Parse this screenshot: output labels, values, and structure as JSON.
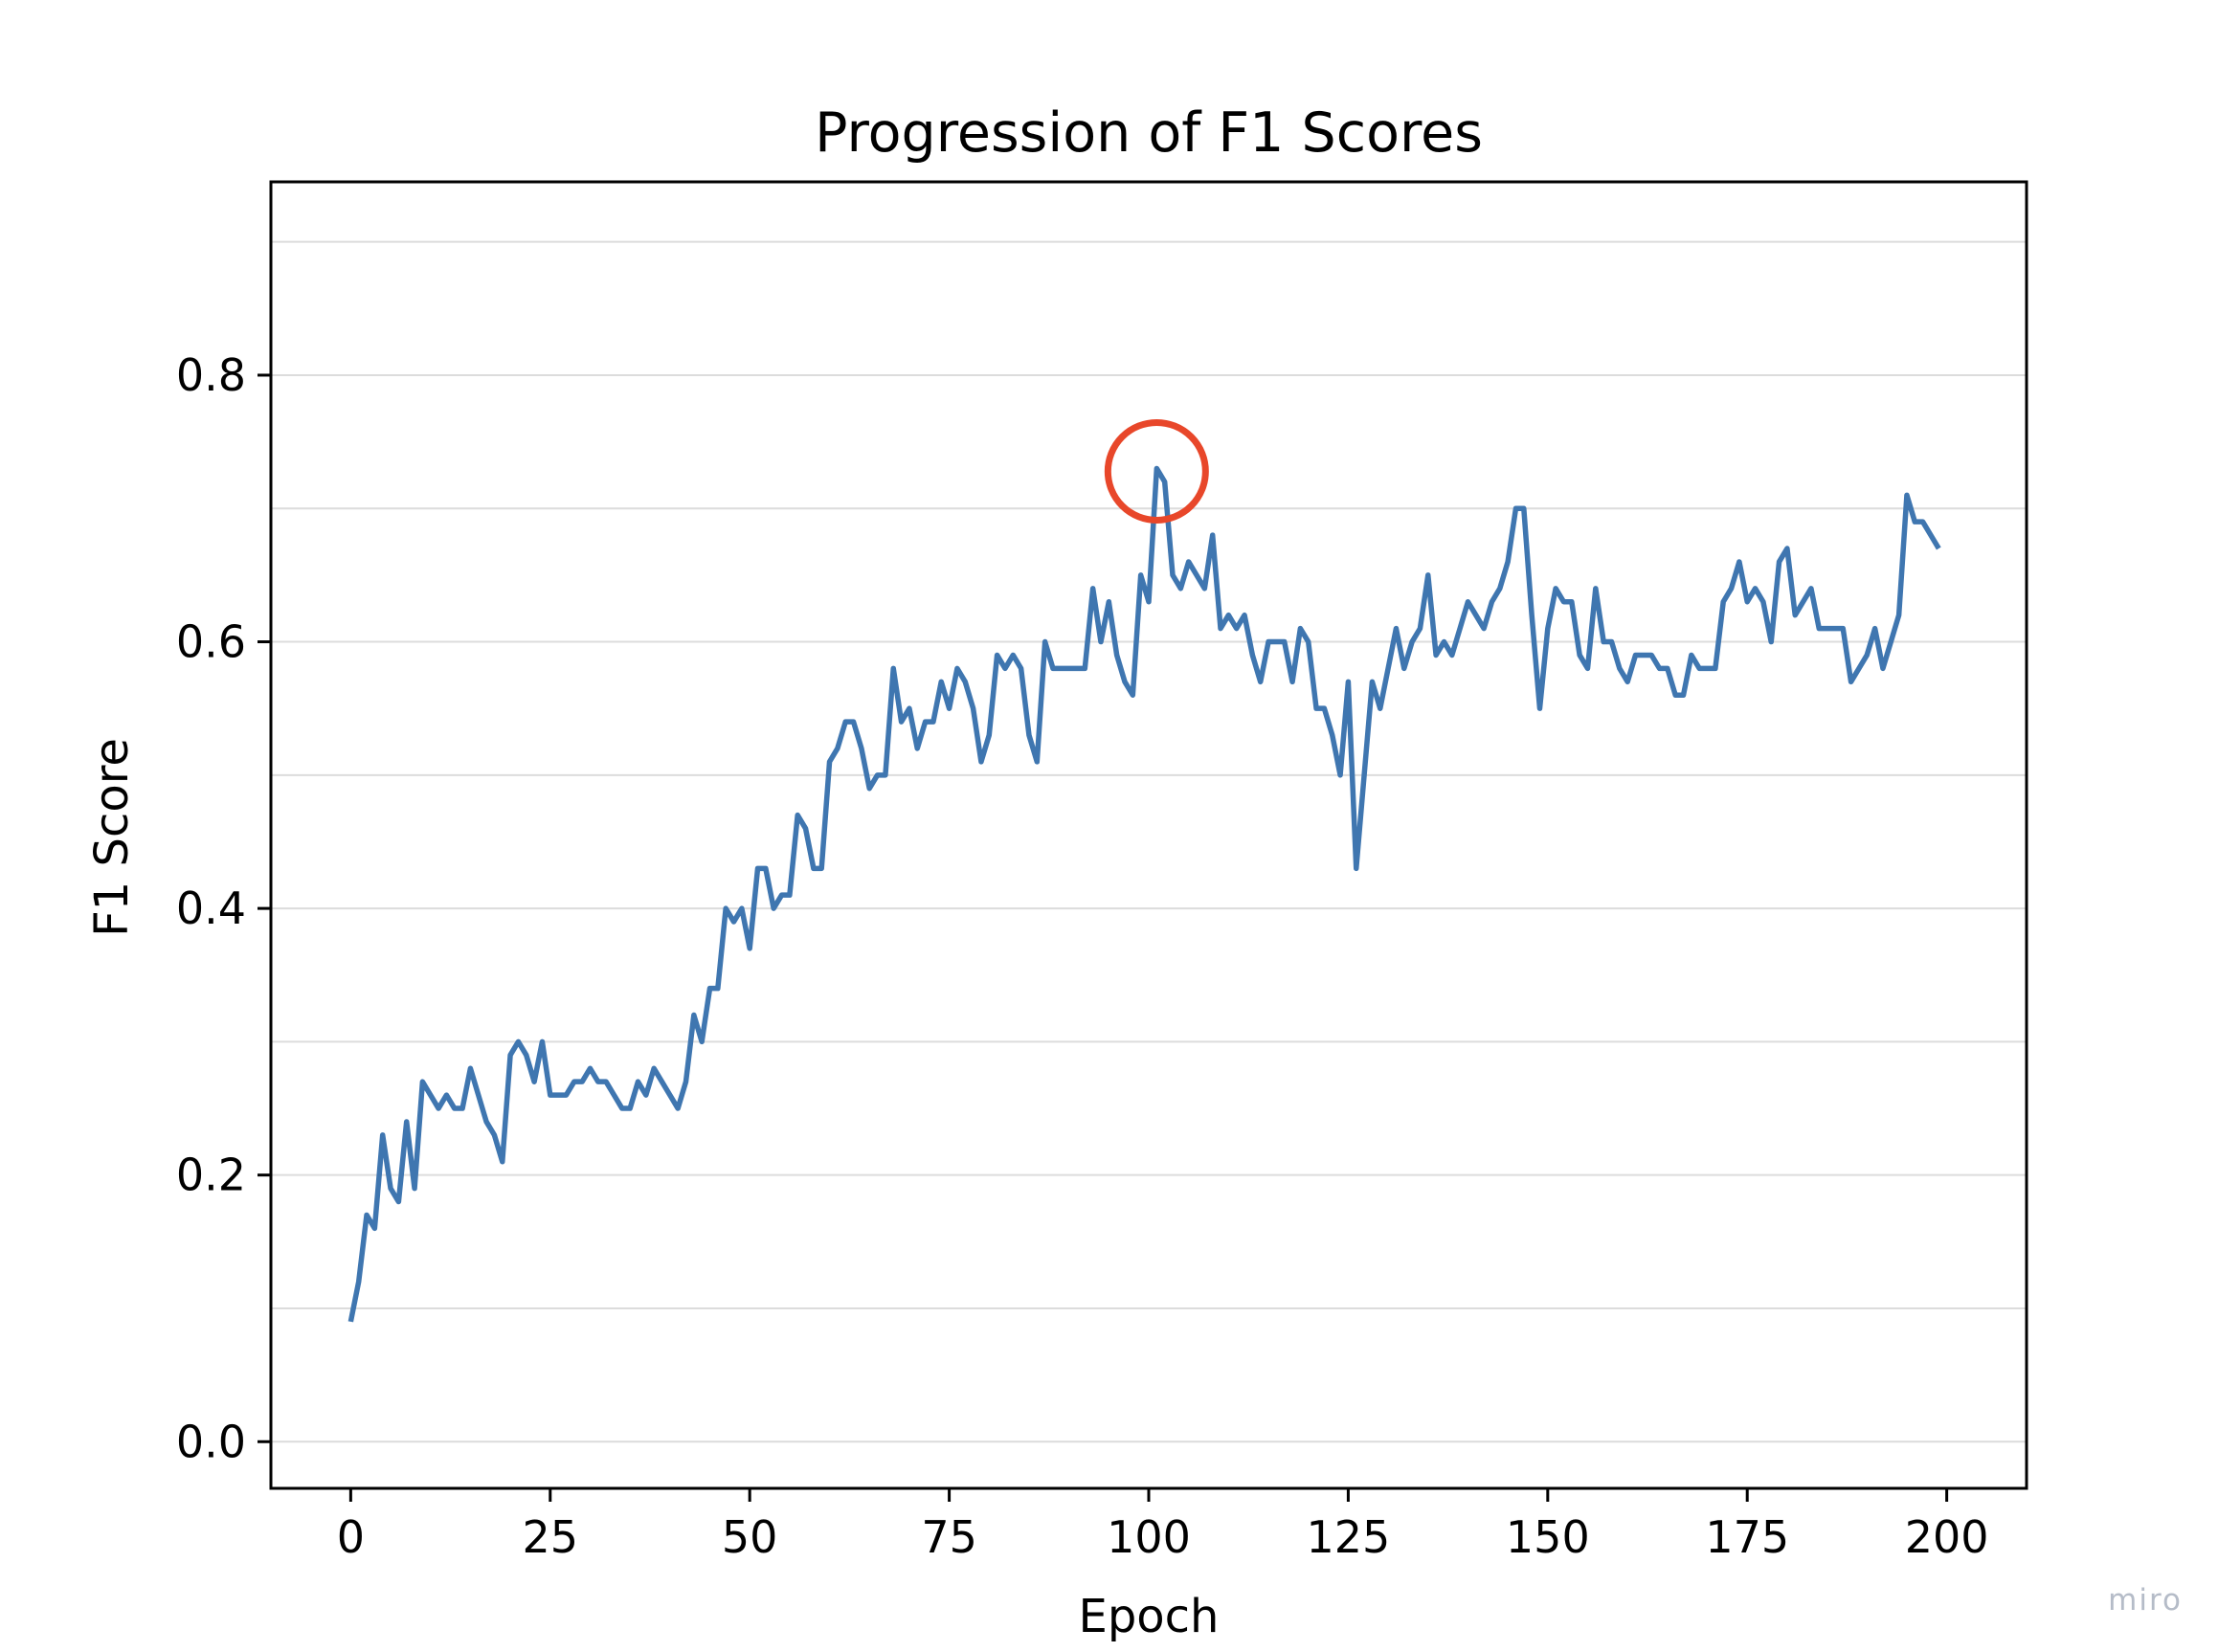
{
  "watermark": "miro",
  "chart_data": {
    "type": "line",
    "title": "Progression of F1 Scores",
    "xlabel": "Epoch",
    "ylabel": "F1 Score",
    "xlim": [
      -10,
      210
    ],
    "ylim": [
      -0.035,
      0.945
    ],
    "x_ticks": [
      0,
      25,
      50,
      75,
      100,
      125,
      150,
      175,
      200
    ],
    "x_tick_labels": [
      "0",
      "25",
      "50",
      "75",
      "100",
      "125",
      "150",
      "175",
      "200"
    ],
    "y_ticks": [
      0.0,
      0.2,
      0.4,
      0.6,
      0.8
    ],
    "y_tick_labels": [
      "0.0",
      "0.2",
      "0.4",
      "0.6",
      "0.8"
    ],
    "grid": "horizontal",
    "grid_lines_y": [
      0.0,
      0.1,
      0.2,
      0.3,
      0.4,
      0.5,
      0.6,
      0.7,
      0.8,
      0.9
    ],
    "line_color": "#3f76b0",
    "highlight_color": "#e8472a",
    "highlight": {
      "x": 101,
      "y": 0.73
    },
    "series": [
      {
        "values": [
          0.09,
          0.12,
          0.17,
          0.16,
          0.23,
          0.19,
          0.18,
          0.24,
          0.19,
          0.27,
          0.26,
          0.25,
          0.26,
          0.25,
          0.25,
          0.28,
          0.26,
          0.24,
          0.23,
          0.21,
          0.29,
          0.3,
          0.29,
          0.27,
          0.3,
          0.26,
          0.26,
          0.26,
          0.27,
          0.27,
          0.28,
          0.27,
          0.27,
          0.26,
          0.25,
          0.25,
          0.27,
          0.26,
          0.28,
          0.27,
          0.26,
          0.25,
          0.27,
          0.32,
          0.3,
          0.34,
          0.34,
          0.4,
          0.39,
          0.4,
          0.37,
          0.43,
          0.43,
          0.4,
          0.41,
          0.41,
          0.47,
          0.46,
          0.43,
          0.43,
          0.51,
          0.52,
          0.54,
          0.54,
          0.52,
          0.49,
          0.5,
          0.5,
          0.58,
          0.54,
          0.55,
          0.52,
          0.54,
          0.54,
          0.57,
          0.55,
          0.58,
          0.57,
          0.55,
          0.51,
          0.53,
          0.59,
          0.58,
          0.59,
          0.58,
          0.53,
          0.51,
          0.6,
          0.58,
          0.58,
          0.58,
          0.58,
          0.58,
          0.64,
          0.6,
          0.63,
          0.59,
          0.57,
          0.56,
          0.65,
          0.63,
          0.73,
          0.72,
          0.65,
          0.64,
          0.66,
          0.65,
          0.64,
          0.68,
          0.61,
          0.62,
          0.61,
          0.62,
          0.59,
          0.57,
          0.6,
          0.6,
          0.6,
          0.57,
          0.61,
          0.6,
          0.55,
          0.55,
          0.53,
          0.5,
          0.57,
          0.43,
          0.5,
          0.57,
          0.55,
          0.58,
          0.61,
          0.58,
          0.6,
          0.61,
          0.65,
          0.59,
          0.6,
          0.59,
          0.61,
          0.63,
          0.62,
          0.61,
          0.63,
          0.64,
          0.66,
          0.7,
          0.7,
          0.62,
          0.55,
          0.61,
          0.64,
          0.63,
          0.63,
          0.59,
          0.58,
          0.64,
          0.6,
          0.6,
          0.58,
          0.57,
          0.59,
          0.59,
          0.59,
          0.58,
          0.58,
          0.56,
          0.56,
          0.59,
          0.58,
          0.58,
          0.58,
          0.63,
          0.64,
          0.66,
          0.63,
          0.64,
          0.63,
          0.6,
          0.66,
          0.67,
          0.62,
          0.63,
          0.64,
          0.61,
          0.61,
          0.61,
          0.61,
          0.57,
          0.58,
          0.59,
          0.61,
          0.58,
          0.6,
          0.62,
          0.71,
          0.69,
          0.69,
          0.68,
          0.67
        ]
      }
    ]
  }
}
